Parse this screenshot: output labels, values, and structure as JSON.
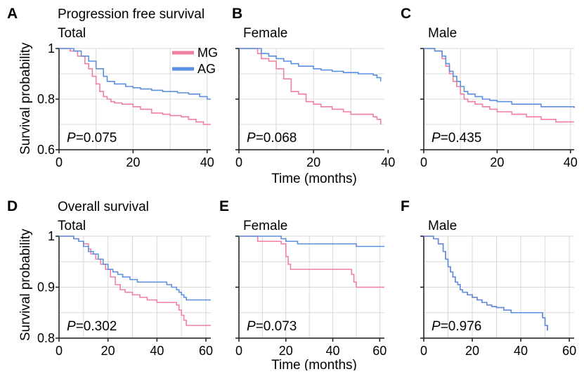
{
  "figure": {
    "y_axis_title": "Survival probability",
    "x_axis_title_top": "Time (months)",
    "x_axis_title_bottom": "Time (months)"
  },
  "legend": [
    {
      "label": "MG",
      "color": "#f07fa0"
    },
    {
      "label": "AG",
      "color": "#5b8fdf"
    }
  ],
  "colors": {
    "MG": "#f07fa0",
    "AG": "#5b8fdf",
    "grid": "#d8d8d8",
    "axis": "#1a1a1a"
  },
  "chart_data": [
    {
      "panel": "A",
      "type": "line",
      "title": "Progression free survival",
      "subtitle": "Total",
      "xlim": [
        0,
        41
      ],
      "ylim": [
        0.6,
        1.0
      ],
      "xticks": [
        0,
        20,
        40
      ],
      "yticks": [
        0.6,
        0.8,
        1.0
      ],
      "ytick_labels": [
        "0.6",
        "0.8",
        "1"
      ],
      "pvalue": "P=0.075",
      "series": [
        {
          "name": "MG",
          "x": [
            0,
            3,
            5,
            7,
            8,
            9,
            10,
            11,
            12,
            13,
            14,
            15,
            17,
            20,
            22,
            25,
            28,
            30,
            33,
            35,
            37,
            39,
            40,
            41
          ],
          "y": [
            1.0,
            0.99,
            0.97,
            0.94,
            0.92,
            0.89,
            0.86,
            0.83,
            0.81,
            0.8,
            0.79,
            0.785,
            0.78,
            0.77,
            0.76,
            0.745,
            0.74,
            0.735,
            0.73,
            0.72,
            0.71,
            0.7,
            0.7,
            0.7
          ]
        },
        {
          "name": "AG",
          "x": [
            0,
            4,
            6,
            8,
            10,
            12,
            13,
            15,
            18,
            20,
            22,
            25,
            28,
            32,
            35,
            38,
            40,
            41
          ],
          "y": [
            1.0,
            0.99,
            0.97,
            0.95,
            0.92,
            0.89,
            0.87,
            0.86,
            0.85,
            0.845,
            0.84,
            0.835,
            0.83,
            0.825,
            0.82,
            0.81,
            0.8,
            0.8
          ]
        }
      ]
    },
    {
      "panel": "B",
      "type": "line",
      "title": "",
      "subtitle": "Female",
      "xlim": [
        0,
        39
      ],
      "ylim": [
        0.6,
        1.0
      ],
      "xticks": [
        0,
        20,
        40
      ],
      "yticks": [
        0.6,
        0.8,
        1.0
      ],
      "ytick_labels": [
        "",
        "",
        ""
      ],
      "pvalue": "P=0.068",
      "series": [
        {
          "name": "MG",
          "x": [
            0,
            5,
            6,
            8,
            10,
            12,
            14,
            16,
            18,
            20,
            22,
            25,
            28,
            30,
            33,
            35,
            36,
            37,
            38
          ],
          "y": [
            1.0,
            0.98,
            0.96,
            0.95,
            0.92,
            0.88,
            0.83,
            0.82,
            0.79,
            0.78,
            0.77,
            0.76,
            0.75,
            0.74,
            0.74,
            0.74,
            0.73,
            0.72,
            0.7
          ]
        },
        {
          "name": "AG",
          "x": [
            0,
            6,
            8,
            10,
            12,
            14,
            16,
            20,
            22,
            25,
            28,
            32,
            34,
            36,
            37,
            38
          ],
          "y": [
            1.0,
            0.98,
            0.97,
            0.96,
            0.95,
            0.94,
            0.93,
            0.92,
            0.915,
            0.91,
            0.905,
            0.9,
            0.9,
            0.895,
            0.885,
            0.87
          ]
        }
      ]
    },
    {
      "panel": "C",
      "type": "line",
      "title": "",
      "subtitle": "Male",
      "xlim": [
        0,
        41
      ],
      "ylim": [
        0.6,
        1.0
      ],
      "xticks": [
        0,
        20,
        40
      ],
      "yticks": [
        0.6,
        0.8,
        1.0
      ],
      "ytick_labels": [
        "",
        "",
        ""
      ],
      "pvalue": "P=0.435",
      "series": [
        {
          "name": "MG",
          "x": [
            0,
            3,
            5,
            6,
            7,
            8,
            9,
            10,
            11,
            12,
            14,
            16,
            18,
            20,
            24,
            28,
            32,
            36,
            38,
            41
          ],
          "y": [
            1.0,
            0.99,
            0.96,
            0.93,
            0.9,
            0.87,
            0.85,
            0.82,
            0.8,
            0.79,
            0.78,
            0.77,
            0.76,
            0.75,
            0.74,
            0.73,
            0.72,
            0.71,
            0.71,
            0.71
          ]
        },
        {
          "name": "AG",
          "x": [
            0,
            3,
            5,
            6,
            7,
            8,
            9,
            10,
            11,
            12,
            14,
            16,
            18,
            20,
            24,
            28,
            32,
            36,
            40,
            41
          ],
          "y": [
            1.0,
            0.99,
            0.97,
            0.94,
            0.91,
            0.89,
            0.87,
            0.85,
            0.83,
            0.82,
            0.81,
            0.8,
            0.795,
            0.79,
            0.78,
            0.78,
            0.77,
            0.77,
            0.77,
            0.765
          ]
        }
      ]
    },
    {
      "panel": "D",
      "type": "line",
      "title": "Overall survival",
      "subtitle": "Total",
      "xlim": [
        0,
        62
      ],
      "ylim": [
        0.8,
        1.0
      ],
      "xticks": [
        0,
        20,
        40,
        60
      ],
      "yticks": [
        0.8,
        0.9,
        1.0
      ],
      "ytick_labels": [
        "0.8",
        "0.9",
        "1"
      ],
      "pvalue": "P=0.302",
      "series": [
        {
          "name": "MG",
          "x": [
            0,
            6,
            8,
            10,
            12,
            13,
            15,
            17,
            19,
            21,
            23,
            25,
            27,
            30,
            33,
            36,
            40,
            45,
            48,
            49,
            50,
            51,
            52,
            62
          ],
          "y": [
            1.0,
            0.995,
            0.99,
            0.985,
            0.975,
            0.965,
            0.955,
            0.945,
            0.935,
            0.92,
            0.905,
            0.895,
            0.89,
            0.885,
            0.88,
            0.875,
            0.87,
            0.87,
            0.865,
            0.855,
            0.845,
            0.835,
            0.825,
            0.825
          ]
        },
        {
          "name": "AG",
          "x": [
            0,
            6,
            8,
            10,
            12,
            14,
            16,
            18,
            20,
            22,
            24,
            26,
            29,
            32,
            36,
            40,
            44,
            46,
            48,
            49,
            50,
            51,
            52,
            62
          ],
          "y": [
            1.0,
            0.995,
            0.99,
            0.98,
            0.97,
            0.965,
            0.955,
            0.945,
            0.935,
            0.93,
            0.925,
            0.92,
            0.915,
            0.91,
            0.91,
            0.91,
            0.905,
            0.9,
            0.895,
            0.89,
            0.885,
            0.88,
            0.875,
            0.875
          ]
        }
      ]
    },
    {
      "panel": "E",
      "type": "line",
      "title": "",
      "subtitle": "Female",
      "xlim": [
        0,
        62
      ],
      "ylim": [
        0.8,
        1.0
      ],
      "xticks": [
        0,
        20,
        40,
        60
      ],
      "yticks": [
        0.8,
        0.9,
        1.0
      ],
      "ytick_labels": [
        "",
        "",
        ""
      ],
      "pvalue": "P=0.073",
      "series": [
        {
          "name": "MG",
          "x": [
            0,
            8,
            10,
            18,
            20,
            21,
            22,
            30,
            35,
            40,
            45,
            48,
            49,
            50,
            62
          ],
          "y": [
            1.0,
            0.99,
            0.99,
            0.985,
            0.96,
            0.945,
            0.935,
            0.935,
            0.935,
            0.935,
            0.935,
            0.925,
            0.91,
            0.9,
            0.9
          ]
        },
        {
          "name": "AG",
          "x": [
            0,
            15,
            18,
            20,
            22,
            25,
            30,
            35,
            40,
            45,
            50,
            55,
            60,
            62
          ],
          "y": [
            1.0,
            1.0,
            0.995,
            0.99,
            0.99,
            0.985,
            0.985,
            0.985,
            0.985,
            0.985,
            0.98,
            0.98,
            0.98,
            0.98
          ]
        }
      ]
    },
    {
      "panel": "F",
      "type": "line",
      "title": "",
      "subtitle": "Male",
      "xlim": [
        0,
        62
      ],
      "ylim": [
        0.8,
        1.0
      ],
      "xticks": [
        0,
        20,
        40,
        60
      ],
      "yticks": [
        0.8,
        0.9,
        1.0
      ],
      "ytick_labels": [
        "",
        "",
        ""
      ],
      "pvalue": "P=0.976",
      "series": [
        {
          "name": "MG",
          "x": [
            0,
            4,
            6,
            8,
            9,
            10,
            11,
            12,
            13,
            14,
            15,
            16,
            18,
            20,
            22,
            24,
            26,
            28,
            30,
            33,
            36,
            40,
            45,
            48,
            49,
            50,
            51
          ],
          "y": [
            1.0,
            0.995,
            0.985,
            0.97,
            0.955,
            0.94,
            0.93,
            0.92,
            0.91,
            0.905,
            0.895,
            0.89,
            0.885,
            0.88,
            0.875,
            0.87,
            0.865,
            0.862,
            0.86,
            0.855,
            0.85,
            0.85,
            0.85,
            0.85,
            0.84,
            0.825,
            0.815
          ]
        },
        {
          "name": "AG",
          "x": [
            0,
            4,
            6,
            8,
            9,
            10,
            11,
            12,
            13,
            14,
            15,
            16,
            18,
            20,
            22,
            24,
            26,
            28,
            30,
            33,
            36,
            40,
            45,
            48,
            49,
            50,
            51
          ],
          "y": [
            1.0,
            0.995,
            0.985,
            0.97,
            0.955,
            0.94,
            0.93,
            0.92,
            0.91,
            0.905,
            0.895,
            0.89,
            0.885,
            0.88,
            0.875,
            0.87,
            0.865,
            0.862,
            0.86,
            0.855,
            0.85,
            0.85,
            0.85,
            0.85,
            0.84,
            0.825,
            0.815
          ]
        }
      ]
    }
  ]
}
